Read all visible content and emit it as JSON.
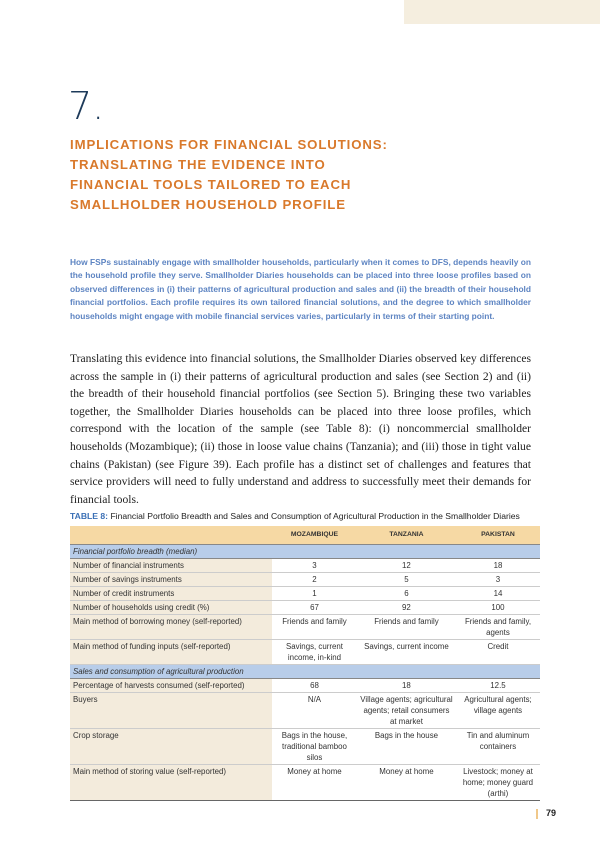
{
  "chapter": {
    "number": "7.",
    "title": "IMPLICATIONS FOR FINANCIAL SOLUTIONS: TRANSLATING THE EVIDENCE INTO FINANCIAL TOOLS TAILORED TO EACH SMALLHOLDER HOUSEHOLD PROFILE"
  },
  "intro": "How FSPs sustainably engage with smallholder households, particularly when it comes to DFS, depends heavily on the household profile they serve. Smallholder Diaries households can be placed into three loose profiles based on observed differences in (i) their patterns of agricultural production and sales and (ii) the breadth of their household financial portfolios. Each profile requires its own tailored financial solutions, and the degree to which smallholder households might engage with mobile financial services varies, particularly in terms of their starting point.",
  "body": "Translating this evidence into financial solutions, the Smallholder Diaries observed key differences across the sample in (i) their patterns of agricultural production and sales (see Section 2) and (ii) the breadth of their household financial portfolios (see Section 5). Bringing these two variables together, the Smallholder Diaries households can be placed into three loose profiles, which correspond with the location of the sample (see Table 8): (i) noncommercial smallholder households (Mozambique); (ii) those in loose value chains (Tanzania); and (iii) those in tight value chains (Pakistan) (see Figure 39). Each profile has a distinct set of challenges and features that service providers will need to fully understand and address to successfully meet their demands for financial tools.",
  "table": {
    "label": "TABLE 8:",
    "caption": "Financial Portfolio Breadth and Sales and Consumption of Agricultural Production in the Smallholder Diaries",
    "columns": [
      "",
      "MOZAMBIQUE",
      "TANZANIA",
      "PAKISTAN"
    ],
    "sections": [
      {
        "title": "Financial portfolio breadth (median)",
        "rows": [
          [
            "Number of financial instruments",
            "3",
            "12",
            "18"
          ],
          [
            "Number of savings instruments",
            "2",
            "5",
            "3"
          ],
          [
            "Number of credit instruments",
            "1",
            "6",
            "14"
          ],
          [
            "Number of households using credit (%)",
            "67",
            "92",
            "100"
          ],
          [
            "Main method of borrowing money (self-reported)",
            "Friends and family",
            "Friends and family",
            "Friends and family, agents"
          ],
          [
            "Main method of funding inputs (self-reported)",
            "Savings, current income, in-kind",
            "Savings, current income",
            "Credit"
          ]
        ]
      },
      {
        "title": "Sales and consumption of agricultural production",
        "rows": [
          [
            "Percentage of harvests consumed (self-reported)",
            "68",
            "18",
            "12.5"
          ],
          [
            "Buyers",
            "N/A",
            "Village agents; agricultural agents; retail consumers at market",
            "Agricultural agents; village agents"
          ],
          [
            "Crop storage",
            "Bags in the house, traditional bamboo silos",
            "Bags in the house",
            "Tin and aluminum containers"
          ],
          [
            "Main method of storing value (self-reported)",
            "Money at home",
            "Money at home",
            "Livestock; money at home; money guard (arthi)"
          ]
        ]
      }
    ]
  },
  "page_number": "79",
  "colors": {
    "accent_orange": "#d9792b",
    "intro_blue": "#5d84c2",
    "header_fill": "#f6d9a4",
    "section_fill": "#b8cde9"
  }
}
